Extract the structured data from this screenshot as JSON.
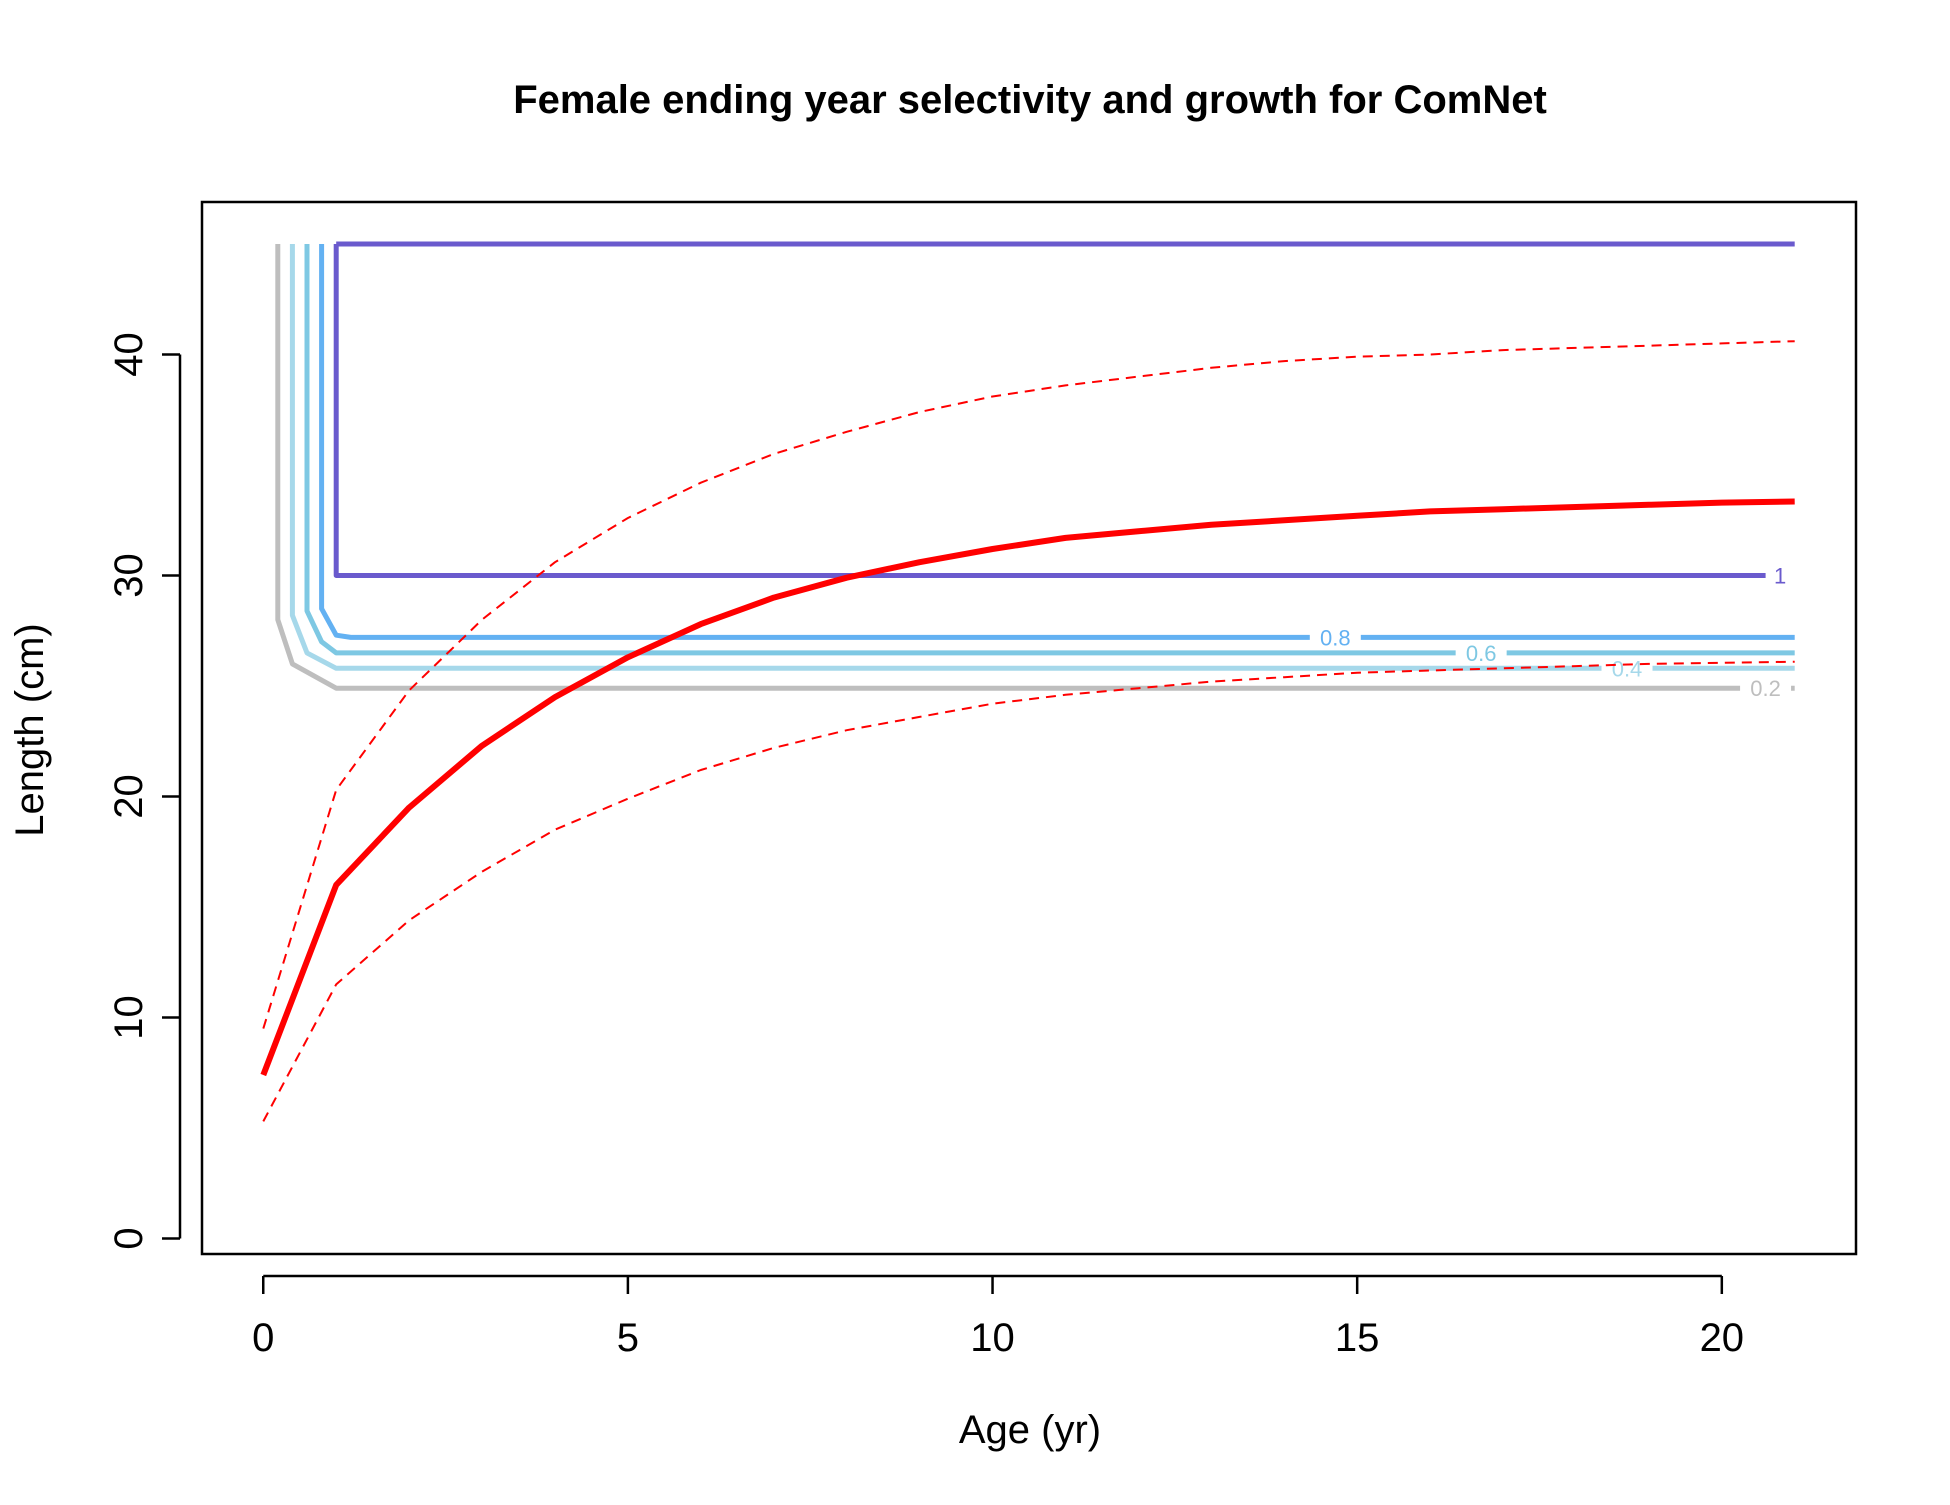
{
  "chart_data": {
    "type": "line",
    "title": "Female ending year selectivity and growth for ComNet",
    "xlabel": "Age (yr)",
    "ylabel": "Length (cm)",
    "xlim": [
      -0.84,
      21.84
    ],
    "ylim": [
      -0.7,
      46.9
    ],
    "x_ticks": [
      0,
      5,
      10,
      15,
      20
    ],
    "y_ticks": [
      0,
      10,
      20,
      30,
      40
    ],
    "grid": false,
    "legend": "none",
    "series": [
      {
        "style": "solid",
        "color": "#ff0000",
        "x": [
          0,
          1,
          2,
          3,
          4,
          5,
          6,
          7,
          8,
          9,
          10,
          11,
          12,
          13,
          14,
          15,
          16,
          17,
          18,
          19,
          20,
          21
        ],
        "y": [
          7.4,
          16.0,
          19.5,
          22.3,
          24.5,
          26.3,
          27.8,
          29.0,
          29.9,
          30.6,
          31.2,
          31.7,
          32.0,
          32.3,
          32.5,
          32.7,
          32.9,
          33.0,
          33.1,
          33.2,
          33.3,
          33.35
        ]
      },
      {
        "style": "dashed",
        "color": "#ff0000",
        "x": [
          0,
          1,
          2,
          3,
          4,
          5,
          6,
          7,
          8,
          9,
          10,
          11,
          12,
          13,
          14,
          15,
          16,
          17,
          18,
          19,
          20,
          21
        ],
        "y": [
          9.5,
          20.3,
          24.8,
          28.0,
          30.6,
          32.6,
          34.2,
          35.5,
          36.5,
          37.4,
          38.1,
          38.6,
          39.0,
          39.4,
          39.7,
          39.9,
          40.0,
          40.2,
          40.3,
          40.4,
          40.5,
          40.6
        ]
      },
      {
        "style": "dashed",
        "color": "#ff0000",
        "x": [
          0,
          1,
          2,
          3,
          4,
          5,
          6,
          7,
          8,
          9,
          10,
          11,
          12,
          13,
          14,
          15,
          16,
          17,
          18,
          19,
          20,
          21
        ],
        "y": [
          5.3,
          11.5,
          14.4,
          16.6,
          18.5,
          19.9,
          21.2,
          22.2,
          23.0,
          23.6,
          24.2,
          24.6,
          24.9,
          25.2,
          25.4,
          25.6,
          25.7,
          25.8,
          25.9,
          26.0,
          26.05,
          26.1
        ]
      }
    ],
    "contours": [
      {
        "level": "0.2",
        "color": "#bebebe",
        "points": [
          [
            0.2,
            45
          ],
          [
            0.2,
            28.0
          ],
          [
            0.4,
            26.0
          ],
          [
            1.0,
            24.9
          ],
          [
            21,
            24.9
          ]
        ],
        "label_x": 20.6
      },
      {
        "level": "0.4",
        "color": "#a6d8ea",
        "points": [
          [
            0.4,
            45
          ],
          [
            0.4,
            28.2
          ],
          [
            0.6,
            26.5
          ],
          [
            1.0,
            25.8
          ],
          [
            21,
            25.8
          ]
        ],
        "label_x": 18.7
      },
      {
        "level": "0.6",
        "color": "#7ec8e3",
        "points": [
          [
            0.6,
            45
          ],
          [
            0.6,
            28.4
          ],
          [
            0.8,
            27.0
          ],
          [
            1.0,
            26.5
          ],
          [
            21,
            26.5
          ]
        ],
        "label_x": 16.7
      },
      {
        "level": "0.8",
        "color": "#63b1f2",
        "points": [
          [
            0.8,
            45
          ],
          [
            0.8,
            28.5
          ],
          [
            1.0,
            27.3
          ],
          [
            1.2,
            27.2
          ],
          [
            21,
            27.2
          ]
        ],
        "label_x": 14.7
      },
      {
        "level": "1",
        "color": "#6a5acd",
        "points": [
          [
            1.0,
            45
          ],
          [
            21,
            45
          ]
        ],
        "points_b": [
          [
            1.0,
            45
          ],
          [
            1.0,
            30
          ],
          [
            20.6,
            30
          ]
        ],
        "label_x": 20.8
      }
    ]
  }
}
